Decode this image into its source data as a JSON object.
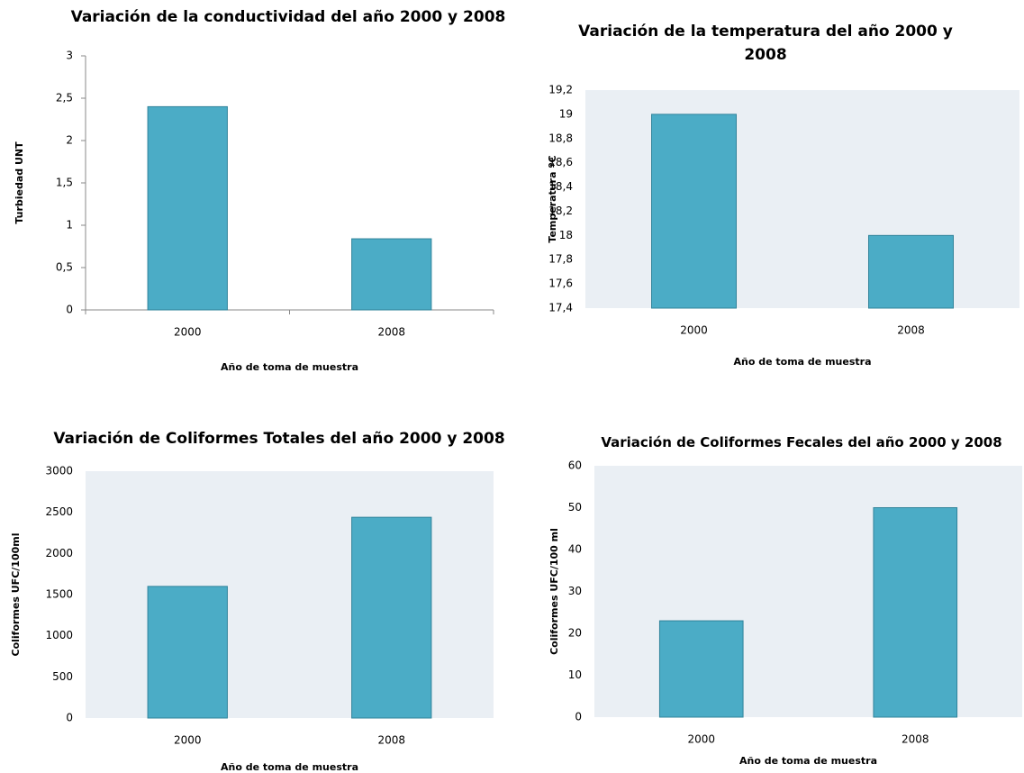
{
  "chart_data": [
    {
      "type": "bar",
      "title": "Variación de la conductividad del año 2000 y 2008",
      "x_label": "Año  de toma de muestra",
      "y_label": "Turbiedad UNT",
      "categories": [
        "2000",
        "2008"
      ],
      "values": [
        2.4,
        0.84
      ],
      "color": "#4bacc6",
      "plot_background": "#ffffff",
      "axis_lines": true,
      "ylim": [
        0,
        3
      ],
      "yticks": [
        0,
        {
          "value": 0.5,
          "label": "0,5"
        },
        1,
        {
          "value": 1.5,
          "label": "1,5"
        },
        2,
        {
          "value": 2.5,
          "label": "2,5"
        },
        3
      ]
    },
    {
      "type": "bar",
      "title": "Variación de la temperatura del año 2000 y 2008",
      "x_label": "Año de toma de muestra",
      "y_label": "Temperatura ºC",
      "categories": [
        "2000",
        "2008"
      ],
      "values": [
        19,
        18
      ],
      "color": "#4bacc6",
      "plot_background": "#eaeff4",
      "axis_lines": false,
      "ylim": [
        17.4,
        19.2
      ],
      "yticks": [
        {
          "value": 17.4,
          "label": "17,4"
        },
        {
          "value": 17.6,
          "label": "17,6"
        },
        {
          "value": 17.8,
          "label": "17,8"
        },
        18,
        {
          "value": 18.2,
          "label": "18,2"
        },
        {
          "value": 18.4,
          "label": "18,4"
        },
        {
          "value": 18.6,
          "label": "18,6"
        },
        {
          "value": 18.8,
          "label": "18,8"
        },
        19,
        {
          "value": 19.2,
          "label": "19,2"
        }
      ]
    },
    {
      "type": "bar",
      "title": "Variación de Coliformes Totales del año 2000 y 2008",
      "x_label": "Año de toma de muestra",
      "y_label": "Coliformes UFC/100ml",
      "categories": [
        "2000",
        "2008"
      ],
      "values": [
        1600,
        2440
      ],
      "color": "#4bacc6",
      "plot_background": "#eaeff4",
      "axis_lines": false,
      "ylim": [
        0,
        3000
      ],
      "yticks": [
        0,
        500,
        1000,
        1500,
        2000,
        2500,
        3000
      ]
    },
    {
      "type": "bar",
      "title": "Variación de Coliformes Fecales del año 2000 y 2008",
      "x_label": "Año de toma de muestra",
      "y_label": "Coliformes UFC/100 ml",
      "categories": [
        "2000",
        "2008"
      ],
      "values": [
        23,
        50
      ],
      "color": "#4bacc6",
      "plot_background": "#eaeff4",
      "axis_lines": false,
      "ylim": [
        0,
        60
      ],
      "yticks": [
        0,
        10,
        20,
        30,
        40,
        50,
        60
      ]
    }
  ]
}
